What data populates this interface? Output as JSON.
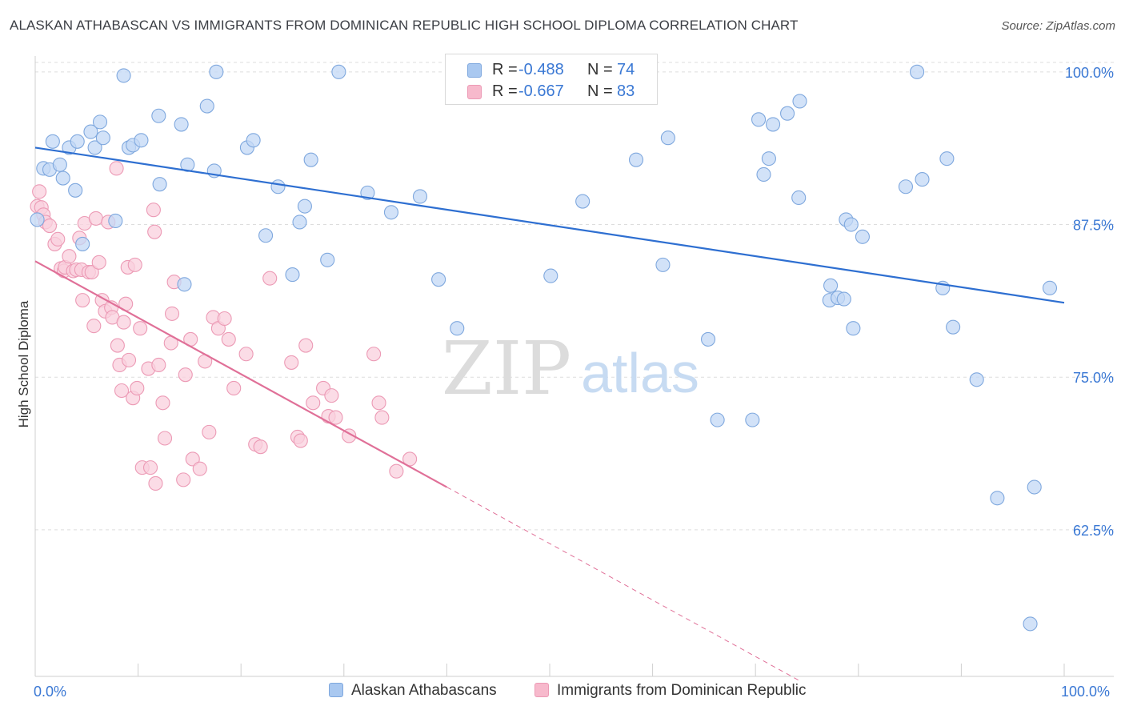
{
  "title": "ALASKAN ATHABASCAN VS IMMIGRANTS FROM DOMINICAN REPUBLIC HIGH SCHOOL DIPLOMA CORRELATION CHART",
  "source": "Source: ZipAtlas.com",
  "watermark": {
    "zip": "ZIP",
    "atlas": "atlas"
  },
  "legend": {
    "r_label": "R = ",
    "n_label": "N = ",
    "rows": [
      {
        "r": "-0.488",
        "n": "74",
        "color": "#a9c8f0"
      },
      {
        "r": "-0.667",
        "n": "83",
        "color": "#f7b9cc"
      }
    ]
  },
  "colors": {
    "blue_line": "#2e6fd1",
    "pink_line": "#e07098",
    "blue_fill": "#c3d8f5",
    "pink_fill": "#fad0dd",
    "tick_text": "#3a78d4"
  },
  "chart_data": {
    "type": "scatter",
    "title": "ALASKAN ATHABASCAN VS IMMIGRANTS FROM DOMINICAN REPUBLIC HIGH SCHOOL DIPLOMA CORRELATION CHART",
    "xlabel": "",
    "ylabel": "High School Diploma",
    "xlim": [
      0,
      100
    ],
    "ylim": [
      50.5,
      101.3
    ],
    "x_tick_labels": [
      "0.0%",
      "100.0%"
    ],
    "y_ticks": [
      62.5,
      75.0,
      87.5,
      100.0
    ],
    "y_tick_labels": [
      "62.5%",
      "75.0%",
      "87.5%",
      "100.0%"
    ],
    "grid": true,
    "legend_position": "top-center",
    "series": [
      {
        "name": "Alaskan Athabascans",
        "color": "#a9c8f0",
        "trend": {
          "x0": 0,
          "y0": 93.8,
          "x1": 100,
          "y1": 81.1
        },
        "points": [
          [
            0.2,
            87.9
          ],
          [
            0.8,
            92.1
          ],
          [
            1.4,
            92.0
          ],
          [
            1.7,
            94.3
          ],
          [
            2.4,
            92.4
          ],
          [
            2.7,
            91.3
          ],
          [
            3.3,
            93.8
          ],
          [
            3.9,
            90.3
          ],
          [
            4.1,
            94.3
          ],
          [
            4.6,
            85.9
          ],
          [
            5.4,
            95.1
          ],
          [
            5.8,
            93.8
          ],
          [
            6.3,
            95.9
          ],
          [
            6.6,
            94.6
          ],
          [
            7.8,
            87.8
          ],
          [
            8.6,
            99.7
          ],
          [
            9.1,
            93.8
          ],
          [
            9.5,
            94.0
          ],
          [
            10.3,
            94.4
          ],
          [
            12.0,
            96.4
          ],
          [
            12.1,
            90.8
          ],
          [
            14.2,
            95.7
          ],
          [
            14.5,
            82.6
          ],
          [
            14.8,
            92.4
          ],
          [
            16.7,
            97.2
          ],
          [
            17.4,
            91.9
          ],
          [
            17.6,
            100.0
          ],
          [
            20.6,
            93.8
          ],
          [
            21.2,
            94.4
          ],
          [
            22.4,
            86.6
          ],
          [
            23.6,
            90.6
          ],
          [
            25.0,
            83.4
          ],
          [
            25.7,
            87.7
          ],
          [
            26.2,
            89.0
          ],
          [
            26.8,
            92.8
          ],
          [
            28.4,
            84.6
          ],
          [
            29.5,
            100.0
          ],
          [
            32.3,
            90.1
          ],
          [
            34.6,
            88.5
          ],
          [
            37.4,
            89.8
          ],
          [
            39.2,
            83.0
          ],
          [
            41.0,
            79.0
          ],
          [
            50.1,
            83.3
          ],
          [
            53.2,
            89.4
          ],
          [
            58.4,
            92.8
          ],
          [
            61.0,
            84.2
          ],
          [
            61.5,
            94.6
          ],
          [
            65.4,
            78.1
          ],
          [
            66.3,
            71.5
          ],
          [
            69.7,
            71.5
          ],
          [
            70.3,
            96.1
          ],
          [
            70.8,
            91.6
          ],
          [
            71.3,
            92.9
          ],
          [
            71.7,
            95.7
          ],
          [
            73.1,
            96.6
          ],
          [
            74.2,
            89.7
          ],
          [
            74.3,
            97.6
          ],
          [
            77.2,
            81.3
          ],
          [
            77.3,
            82.5
          ],
          [
            78.0,
            81.5
          ],
          [
            78.6,
            81.4
          ],
          [
            78.8,
            87.9
          ],
          [
            79.3,
            87.5
          ],
          [
            79.5,
            79.0
          ],
          [
            80.4,
            86.5
          ],
          [
            84.6,
            90.6
          ],
          [
            85.7,
            100.0
          ],
          [
            86.2,
            91.2
          ],
          [
            88.2,
            82.3
          ],
          [
            88.6,
            92.9
          ],
          [
            89.2,
            79.1
          ],
          [
            91.5,
            74.8
          ],
          [
            93.5,
            65.1
          ],
          [
            97.1,
            66.0
          ],
          [
            96.7,
            54.8
          ],
          [
            98.6,
            82.3
          ]
        ]
      },
      {
        "name": "Immigrants from Dominican Republic",
        "color": "#f7b9cc",
        "trend": {
          "x0": 0,
          "y0": 84.5,
          "x1": 40,
          "y1": 66.0,
          "dash_x1": 74.4
        },
        "points": [
          [
            0.2,
            89.0
          ],
          [
            0.4,
            90.2
          ],
          [
            0.6,
            88.9
          ],
          [
            0.8,
            88.3
          ],
          [
            1.0,
            87.7
          ],
          [
            1.4,
            87.4
          ],
          [
            1.9,
            85.9
          ],
          [
            2.2,
            86.3
          ],
          [
            2.5,
            83.9
          ],
          [
            2.8,
            83.7
          ],
          [
            2.9,
            84.0
          ],
          [
            3.3,
            84.9
          ],
          [
            3.7,
            83.7
          ],
          [
            4.0,
            83.8
          ],
          [
            4.3,
            86.4
          ],
          [
            4.5,
            83.8
          ],
          [
            4.6,
            81.3
          ],
          [
            4.8,
            87.6
          ],
          [
            5.2,
            83.6
          ],
          [
            5.5,
            83.6
          ],
          [
            5.7,
            79.2
          ],
          [
            5.9,
            88.0
          ],
          [
            6.2,
            84.4
          ],
          [
            6.5,
            81.3
          ],
          [
            6.8,
            80.4
          ],
          [
            7.1,
            87.7
          ],
          [
            7.4,
            80.7
          ],
          [
            7.5,
            79.9
          ],
          [
            7.9,
            92.1
          ],
          [
            8.0,
            77.6
          ],
          [
            8.2,
            76.0
          ],
          [
            8.4,
            73.9
          ],
          [
            8.6,
            79.5
          ],
          [
            8.8,
            81.0
          ],
          [
            9.0,
            84.0
          ],
          [
            9.1,
            76.4
          ],
          [
            9.5,
            73.3
          ],
          [
            9.7,
            84.2
          ],
          [
            9.9,
            74.1
          ],
          [
            10.2,
            79.0
          ],
          [
            10.4,
            67.6
          ],
          [
            11.0,
            75.7
          ],
          [
            11.2,
            67.6
          ],
          [
            11.5,
            88.7
          ],
          [
            11.6,
            86.9
          ],
          [
            11.7,
            66.3
          ],
          [
            12.0,
            76.0
          ],
          [
            12.4,
            72.9
          ],
          [
            12.6,
            70.0
          ],
          [
            13.2,
            77.8
          ],
          [
            13.3,
            80.2
          ],
          [
            13.5,
            82.8
          ],
          [
            14.4,
            66.6
          ],
          [
            14.6,
            75.2
          ],
          [
            15.1,
            78.1
          ],
          [
            15.3,
            68.3
          ],
          [
            16.0,
            67.5
          ],
          [
            16.5,
            76.3
          ],
          [
            16.9,
            70.5
          ],
          [
            17.3,
            79.9
          ],
          [
            17.8,
            79.0
          ],
          [
            18.4,
            79.8
          ],
          [
            18.8,
            78.1
          ],
          [
            19.3,
            74.1
          ],
          [
            20.5,
            76.9
          ],
          [
            21.4,
            69.5
          ],
          [
            21.9,
            69.3
          ],
          [
            22.8,
            83.1
          ],
          [
            24.9,
            76.2
          ],
          [
            25.5,
            70.1
          ],
          [
            25.8,
            69.8
          ],
          [
            26.3,
            77.6
          ],
          [
            27.0,
            72.9
          ],
          [
            28.0,
            74.1
          ],
          [
            28.5,
            71.8
          ],
          [
            28.8,
            73.5
          ],
          [
            29.2,
            71.7
          ],
          [
            30.5,
            70.2
          ],
          [
            32.9,
            76.9
          ],
          [
            33.4,
            72.9
          ],
          [
            33.7,
            71.7
          ],
          [
            35.1,
            67.3
          ],
          [
            36.4,
            68.3
          ]
        ]
      }
    ]
  },
  "bottom_legend": [
    {
      "label": "Alaskan Athabascans",
      "color": "#a9c8f0"
    },
    {
      "label": "Immigrants from Dominican Republic",
      "color": "#f7b9cc"
    }
  ]
}
